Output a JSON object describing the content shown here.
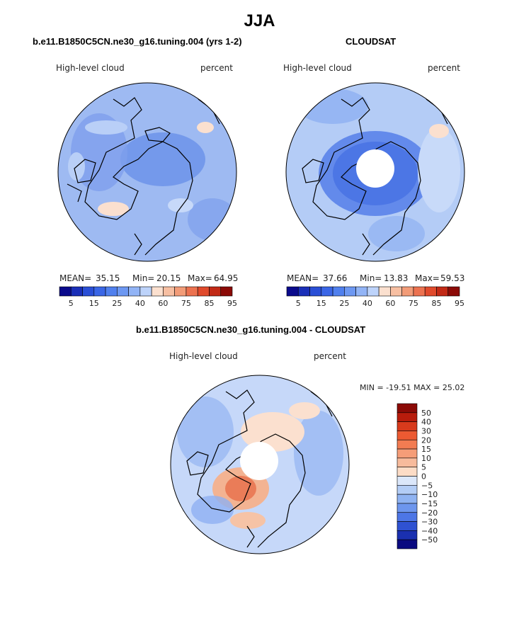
{
  "page_title": "JJA",
  "panels": [
    {
      "title": "b.e11.B1850C5CN.ne30_g16.tuning.004 (yrs 1-2)",
      "variable": "High-level cloud",
      "units": "percent",
      "mean_label": "MEAN=",
      "mean": "35.15",
      "min_label": "Min=",
      "min": "20.15",
      "max_label": "Max=",
      "max": "64.95"
    },
    {
      "title": "CLOUDSAT",
      "variable": "High-level cloud",
      "units": "percent",
      "mean_label": "MEAN=",
      "mean": "37.66",
      "min_label": "Min=",
      "min": "13.83",
      "max_label": "Max=",
      "max": "59.53"
    },
    {
      "title": "b.e11.B1850C5CN.ne30_g16.tuning.004 - CLOUDSAT",
      "variable": "High-level cloud",
      "units": "percent",
      "minmax_text": "MIN = -19.51 MAX =   25.02"
    }
  ],
  "chart_data": [
    {
      "type": "heatmap",
      "projection": "north polar stereographic",
      "title": "b.e11.B1850C5CN.ne30_g16.tuning.004 (yrs 1-2)",
      "variable": "High-level cloud",
      "units": "percent",
      "mean": 35.15,
      "min": 20.15,
      "max": 64.95,
      "colorbar_levels": [
        5,
        10,
        15,
        20,
        25,
        30,
        40,
        50,
        60,
        70,
        75,
        80,
        85,
        90,
        95
      ],
      "colorbar_tick_labels": [
        "5",
        "15",
        "25",
        "40",
        "60",
        "75",
        "85",
        "95"
      ],
      "colorbar_colors": [
        "#0a0a8c",
        "#1a2fb8",
        "#2a4fd6",
        "#3a66e6",
        "#5080ee",
        "#6d98f2",
        "#92b4f6",
        "#bdd3fa",
        "#fbe0cf",
        "#f7bfa2",
        "#f29c78",
        "#ec7250",
        "#e04a2c",
        "#c22a16",
        "#8b0a06"
      ],
      "legend_position": "bottom"
    },
    {
      "type": "heatmap",
      "projection": "north polar stereographic",
      "title": "CLOUDSAT",
      "variable": "High-level cloud",
      "units": "percent",
      "mean": 37.66,
      "min": 13.83,
      "max": 59.53,
      "colorbar_levels": [
        5,
        10,
        15,
        20,
        25,
        30,
        40,
        50,
        60,
        70,
        75,
        80,
        85,
        90,
        95
      ],
      "colorbar_tick_labels": [
        "5",
        "15",
        "25",
        "40",
        "60",
        "75",
        "85",
        "95"
      ],
      "colorbar_colors": [
        "#0a0a8c",
        "#1a2fb8",
        "#2a4fd6",
        "#3a66e6",
        "#5080ee",
        "#6d98f2",
        "#92b4f6",
        "#bdd3fa",
        "#fbe0cf",
        "#f7bfa2",
        "#f29c78",
        "#ec7250",
        "#e04a2c",
        "#c22a16",
        "#8b0a06"
      ],
      "legend_position": "bottom",
      "missing_data_region": "north pole"
    },
    {
      "type": "heatmap",
      "projection": "north polar stereographic",
      "title": "b.e11.B1850C5CN.ne30_g16.tuning.004 - CLOUDSAT",
      "variable": "High-level cloud",
      "units": "percent",
      "min": -19.51,
      "max": 25.02,
      "colorbar_tick_labels": [
        "50",
        "40",
        "30",
        "20",
        "15",
        "10",
        "5",
        "0",
        "-5",
        "-10",
        "-15",
        "-20",
        "-30",
        "-40",
        "-50"
      ],
      "colorbar_colors": [
        "#8b0a06",
        "#b81c0c",
        "#d83a1c",
        "#ec5a32",
        "#f27c52",
        "#f59d78",
        "#f7bb9c",
        "#fcdcc6",
        "#dbe7fa",
        "#b3cdf6",
        "#8fb3f2",
        "#6d96ee",
        "#4d76e6",
        "#2f52d2",
        "#1a30b0",
        "#0a0a80"
      ],
      "legend_position": "right",
      "missing_data_region": "north pole"
    }
  ]
}
